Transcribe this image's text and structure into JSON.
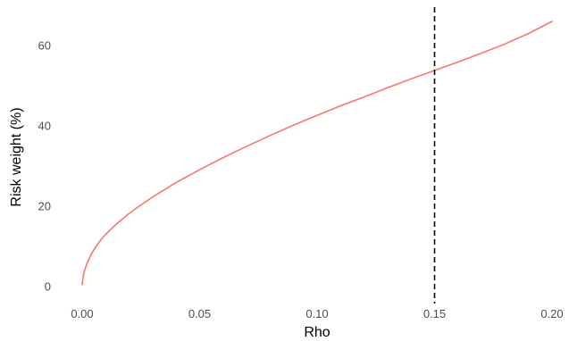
{
  "chart_data": {
    "type": "line",
    "title": "",
    "xlabel": "Rho",
    "ylabel": "Risk weight (%)",
    "xlim": [
      0,
      0.2
    ],
    "ylim": [
      0,
      66
    ],
    "x_ticks": [
      "0.00",
      "0.05",
      "0.10",
      "0.15",
      "0.20"
    ],
    "y_ticks": [
      "0",
      "20",
      "40",
      "60"
    ],
    "grid": false,
    "legend": "none",
    "series": [
      {
        "color": "#f8766d",
        "x": [
          0.0,
          0.0005,
          0.001,
          0.002,
          0.004,
          0.006,
          0.008,
          0.01,
          0.015,
          0.02,
          0.025,
          0.03,
          0.04,
          0.05,
          0.06,
          0.07,
          0.08,
          0.09,
          0.1,
          0.11,
          0.12,
          0.13,
          0.14,
          0.15,
          0.16,
          0.17,
          0.18,
          0.19,
          0.2
        ],
        "y": [
          0.5,
          2.8,
          4.0,
          5.7,
          8.2,
          10.1,
          11.7,
          13.0,
          15.8,
          18.2,
          20.3,
          22.3,
          25.9,
          29.1,
          32.1,
          34.9,
          37.6,
          40.2,
          42.6,
          45.0,
          47.2,
          49.5,
          51.7,
          53.8,
          55.9,
          58.1,
          60.4,
          63.0,
          66.0
        ]
      }
    ],
    "reference_lines": [
      {
        "orientation": "vertical",
        "x": 0.15,
        "style": "dashed",
        "color": "#000000"
      }
    ]
  }
}
